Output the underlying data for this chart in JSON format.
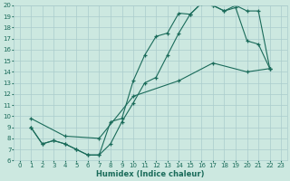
{
  "xlabel": "Humidex (Indice chaleur)",
  "xlim": [
    -0.5,
    23.5
  ],
  "ylim": [
    6,
    20
  ],
  "xticks": [
    0,
    1,
    2,
    3,
    4,
    5,
    6,
    7,
    8,
    9,
    10,
    11,
    12,
    13,
    14,
    15,
    16,
    17,
    18,
    19,
    20,
    21,
    22,
    23
  ],
  "yticks": [
    6,
    7,
    8,
    9,
    10,
    11,
    12,
    13,
    14,
    15,
    16,
    17,
    18,
    19,
    20
  ],
  "background_color": "#cce8e0",
  "grid_color": "#aacccc",
  "line_color": "#1a6b5a",
  "line1_x": [
    1,
    2,
    3,
    4,
    5,
    6,
    7,
    8,
    9,
    10,
    11,
    12,
    13,
    14,
    15,
    16,
    17,
    18,
    19,
    20,
    21,
    22
  ],
  "line1_y": [
    9,
    7.5,
    7.8,
    7.5,
    7.0,
    6.5,
    6.5,
    7.5,
    9.5,
    11.2,
    13.0,
    13.5,
    15.5,
    17.5,
    19.2,
    20.2,
    20.0,
    19.5,
    19.8,
    16.8,
    16.5,
    14.3
  ],
  "line2_x": [
    1,
    2,
    3,
    4,
    5,
    6,
    7,
    8,
    9,
    10,
    11,
    12,
    13,
    14,
    15,
    16,
    17,
    18,
    19,
    20,
    21,
    22
  ],
  "line2_y": [
    9,
    7.5,
    7.8,
    7.5,
    7.0,
    6.5,
    6.5,
    9.5,
    9.8,
    13.2,
    15.5,
    17.2,
    17.5,
    19.3,
    19.2,
    20.2,
    20.0,
    19.5,
    20.0,
    19.5,
    19.5,
    14.3
  ],
  "line3_x": [
    1,
    4,
    7,
    10,
    14,
    17,
    20,
    22
  ],
  "line3_y": [
    9.8,
    8.2,
    8.0,
    11.8,
    13.2,
    14.8,
    14.0,
    14.3
  ]
}
